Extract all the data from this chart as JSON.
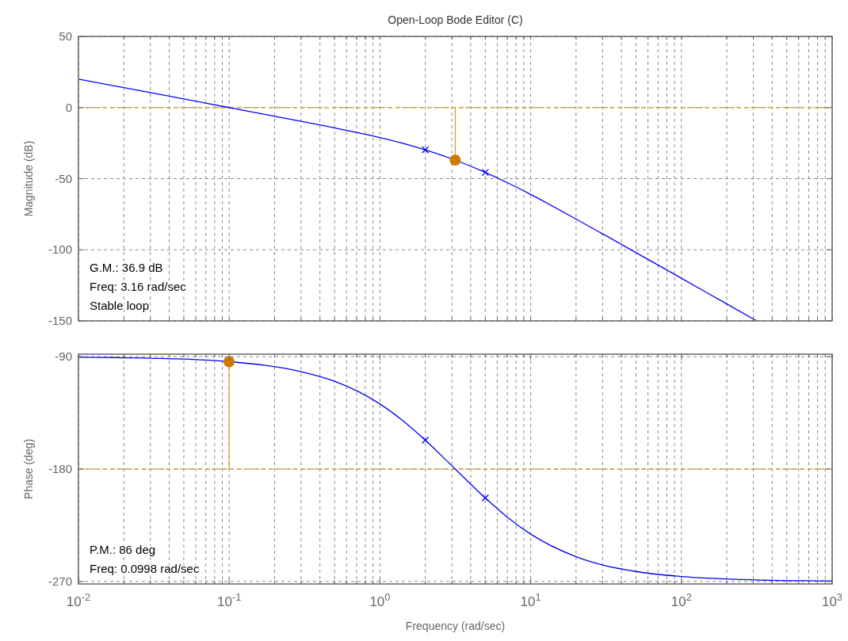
{
  "chart_data": [
    {
      "type": "line",
      "title": "Open-Loop Bode Editor (C)",
      "ylabel": "Magnitude (dB)",
      "log": "x",
      "grid": true,
      "tick_labels": "y",
      "xlim": [
        0.01,
        1000
      ],
      "xticks": [
        {
          "value": 0.01,
          "label": null
        },
        {
          "value": 0.02,
          "label": null
        },
        {
          "value": 0.03,
          "label": null
        },
        {
          "value": 0.04,
          "label": null
        },
        {
          "value": 0.05,
          "label": null
        },
        {
          "value": 0.06,
          "label": null
        },
        {
          "value": 0.07,
          "label": null
        },
        {
          "value": 0.08,
          "label": null
        },
        {
          "value": 0.09,
          "label": null
        },
        {
          "value": 0.1,
          "label": null
        },
        {
          "value": 0.2,
          "label": null
        },
        {
          "value": 0.3,
          "label": null
        },
        {
          "value": 0.4,
          "label": null
        },
        {
          "value": 0.5,
          "label": null
        },
        {
          "value": 0.6,
          "label": null
        },
        {
          "value": 0.7,
          "label": null
        },
        {
          "value": 0.8,
          "label": null
        },
        {
          "value": 0.9,
          "label": null
        },
        {
          "value": 1,
          "label": null
        },
        {
          "value": 2,
          "label": null
        },
        {
          "value": 3,
          "label": null
        },
        {
          "value": 4,
          "label": null
        },
        {
          "value": 5,
          "label": null
        },
        {
          "value": 6,
          "label": null
        },
        {
          "value": 7,
          "label": null
        },
        {
          "value": 8,
          "label": null
        },
        {
          "value": 9,
          "label": null
        },
        {
          "value": 10,
          "label": null
        },
        {
          "value": 20,
          "label": null
        },
        {
          "value": 30,
          "label": null
        },
        {
          "value": 40,
          "label": null
        },
        {
          "value": 50,
          "label": null
        },
        {
          "value": 60,
          "label": null
        },
        {
          "value": 70,
          "label": null
        },
        {
          "value": 80,
          "label": null
        },
        {
          "value": 90,
          "label": null
        },
        {
          "value": 100,
          "label": null
        },
        {
          "value": 200,
          "label": null
        },
        {
          "value": 300,
          "label": null
        },
        {
          "value": 400,
          "label": null
        },
        {
          "value": 500,
          "label": null
        },
        {
          "value": 600,
          "label": null
        },
        {
          "value": 700,
          "label": null
        },
        {
          "value": 800,
          "label": null
        },
        {
          "value": 900,
          "label": null
        },
        {
          "value": 1000,
          "label": null
        }
      ],
      "ylim": [
        -150,
        50
      ],
      "yticks": [
        -150,
        -100,
        -50,
        0,
        50
      ],
      "ref_lines": [
        {
          "axis": "y",
          "value": 0,
          "color": "#d9a040",
          "line_style": "dashed"
        }
      ],
      "annotations": [
        "G.M.: 36.9 dB",
        "Freq: 3.16 rad/sec",
        "Stable loop"
      ],
      "series": [
        {
          "color": "#0000ff",
          "marker": "none",
          "x": [
            0.01,
            0.03,
            0.1,
            0.3,
            0.5,
            1,
            1.5,
            2,
            3.16,
            5,
            7,
            10,
            20,
            30,
            50,
            100,
            200,
            316
          ],
          "values": [
            20,
            10.5,
            0,
            -9.7,
            -14.3,
            -21.1,
            -25.8,
            -29.7,
            -36.9,
            -45.6,
            -52.8,
            -61.1,
            -78.4,
            -88.8,
            -102,
            -120,
            -138.1,
            -150
          ]
        },
        {
          "type": "scatter",
          "color": "#0000ff",
          "marker": "cross",
          "x": [
            2,
            5
          ],
          "values": [
            -29.7,
            -45.6
          ]
        },
        {
          "color": "#d9a040",
          "marker": "none",
          "x": [
            3.16,
            3.16
          ],
          "values": [
            0,
            -36.9
          ]
        },
        {
          "type": "scatter",
          "color": "#cc7a00",
          "marker": "circle",
          "x": [
            3.16
          ],
          "values": [
            -36.9
          ]
        }
      ]
    },
    {
      "type": "line",
      "xlabel": "Frequency (rad/sec)",
      "ylabel": "Phase (deg)",
      "log": "x",
      "grid": true,
      "xlim": [
        0.01,
        1000
      ],
      "xticks": [
        {
          "value": 0.01,
          "label": "10$^{-2}$"
        },
        {
          "value": 0.02,
          "label": null
        },
        {
          "value": 0.03,
          "label": null
        },
        {
          "value": 0.04,
          "label": null
        },
        {
          "value": 0.05,
          "label": null
        },
        {
          "value": 0.06,
          "label": null
        },
        {
          "value": 0.07,
          "label": null
        },
        {
          "value": 0.08,
          "label": null
        },
        {
          "value": 0.09,
          "label": null
        },
        {
          "value": 0.1,
          "label": "10$^{-1}$"
        },
        {
          "value": 0.2,
          "label": null
        },
        {
          "value": 0.3,
          "label": null
        },
        {
          "value": 0.4,
          "label": null
        },
        {
          "value": 0.5,
          "label": null
        },
        {
          "value": 0.6,
          "label": null
        },
        {
          "value": 0.7,
          "label": null
        },
        {
          "value": 0.8,
          "label": null
        },
        {
          "value": 0.9,
          "label": null
        },
        {
          "value": 1,
          "label": "10$^{0}$"
        },
        {
          "value": 2,
          "label": null
        },
        {
          "value": 3,
          "label": null
        },
        {
          "value": 4,
          "label": null
        },
        {
          "value": 5,
          "label": null
        },
        {
          "value": 6,
          "label": null
        },
        {
          "value": 7,
          "label": null
        },
        {
          "value": 8,
          "label": null
        },
        {
          "value": 9,
          "label": null
        },
        {
          "value": 10,
          "label": "10$^{1}$"
        },
        {
          "value": 20,
          "label": null
        },
        {
          "value": 30,
          "label": null
        },
        {
          "value": 40,
          "label": null
        },
        {
          "value": 50,
          "label": null
        },
        {
          "value": 60,
          "label": null
        },
        {
          "value": 70,
          "label": null
        },
        {
          "value": 80,
          "label": null
        },
        {
          "value": 90,
          "label": null
        },
        {
          "value": 100,
          "label": "10$^{2}$"
        },
        {
          "value": 200,
          "label": null
        },
        {
          "value": 300,
          "label": null
        },
        {
          "value": 400,
          "label": null
        },
        {
          "value": 500,
          "label": null
        },
        {
          "value": 600,
          "label": null
        },
        {
          "value": 700,
          "label": null
        },
        {
          "value": 800,
          "label": null
        },
        {
          "value": 900,
          "label": null
        },
        {
          "value": 1000,
          "label": "10$^{3}$"
        }
      ],
      "ylim": [
        -272,
        -88
      ],
      "yticks": [
        -270,
        -180,
        -90
      ],
      "ref_lines": [
        {
          "axis": "y",
          "value": -180,
          "color": "#d9a040",
          "line_style": "dashed"
        }
      ],
      "annotations": [
        "P.M.: 86 deg",
        "Freq: 0.0998 rad/sec"
      ],
      "series": [
        {
          "color": "#0000ff",
          "marker": "none",
          "x": [
            0.01,
            0.03,
            0.1,
            0.3,
            0.5,
            1,
            1.5,
            2,
            3.16,
            5,
            7,
            10,
            20,
            50,
            100,
            300,
            1000
          ],
          "values": [
            -90.4,
            -91.2,
            -94,
            -102,
            -109.7,
            -127.9,
            -143.6,
            -156.8,
            -180,
            -203.2,
            -218.5,
            -232.1,
            -250.2,
            -262,
            -266,
            -268.7,
            -269.6
          ]
        },
        {
          "type": "scatter",
          "color": "#0000ff",
          "marker": "cross",
          "x": [
            2,
            5
          ],
          "values": [
            -156.8,
            -203.2
          ]
        },
        {
          "color": "#d9a040",
          "marker": "none",
          "x": [
            0.0998,
            0.0998
          ],
          "values": [
            -180,
            -94
          ]
        },
        {
          "type": "scatter",
          "color": "#cc7a00",
          "marker": "circle",
          "x": [
            0.0998
          ],
          "values": [
            -94
          ]
        }
      ]
    }
  ]
}
